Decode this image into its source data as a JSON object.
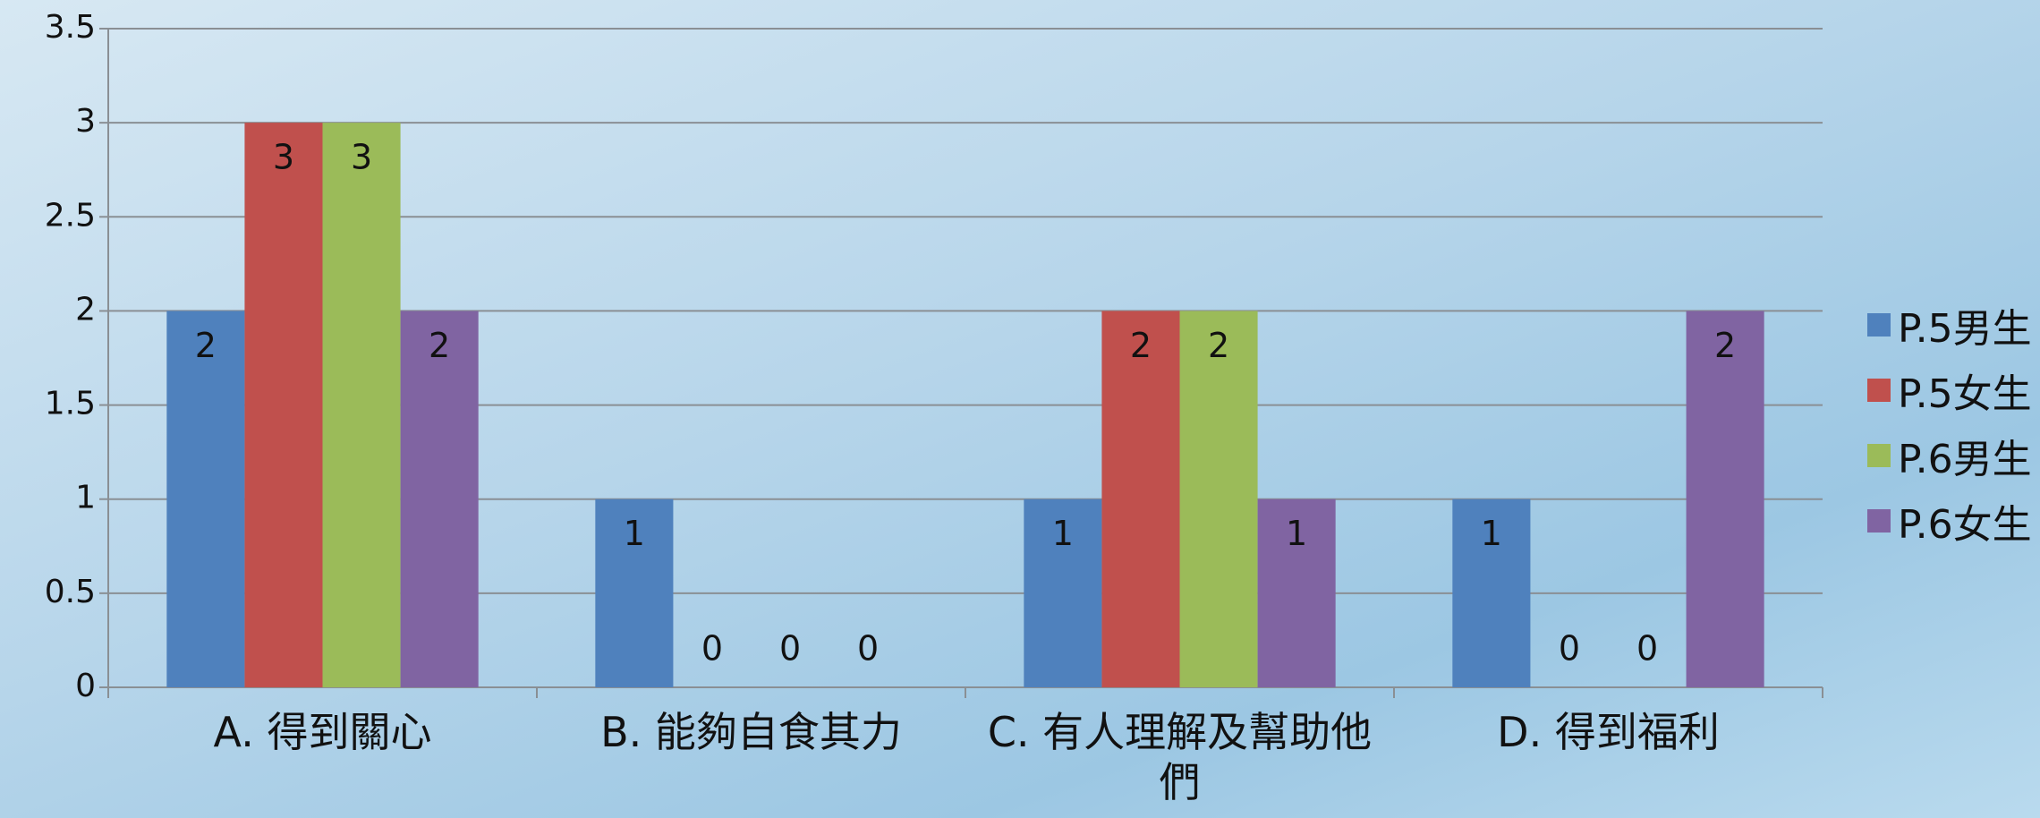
{
  "chart_data": {
    "type": "bar",
    "categories": [
      "A. 得到關心",
      "B. 能夠自食其力",
      "C. 有人理解及幫助他們",
      "D. 得到福利"
    ],
    "series": [
      {
        "name": "P.5男生",
        "color": "#4f81bd",
        "values": [
          2,
          1,
          1,
          1
        ]
      },
      {
        "name": "P.5女生",
        "color": "#c0504d",
        "values": [
          3,
          0,
          2,
          0
        ]
      },
      {
        "name": "P.6男生",
        "color": "#9bbb59",
        "values": [
          3,
          0,
          2,
          0
        ]
      },
      {
        "name": "P.6女生",
        "color": "#8064a2",
        "values": [
          2,
          0,
          1,
          2
        ]
      }
    ],
    "ylim": [
      0,
      3.5
    ],
    "yticks": [
      0,
      0.5,
      1,
      1.5,
      2,
      2.5,
      3,
      3.5
    ],
    "grid": true,
    "legend": "right"
  }
}
